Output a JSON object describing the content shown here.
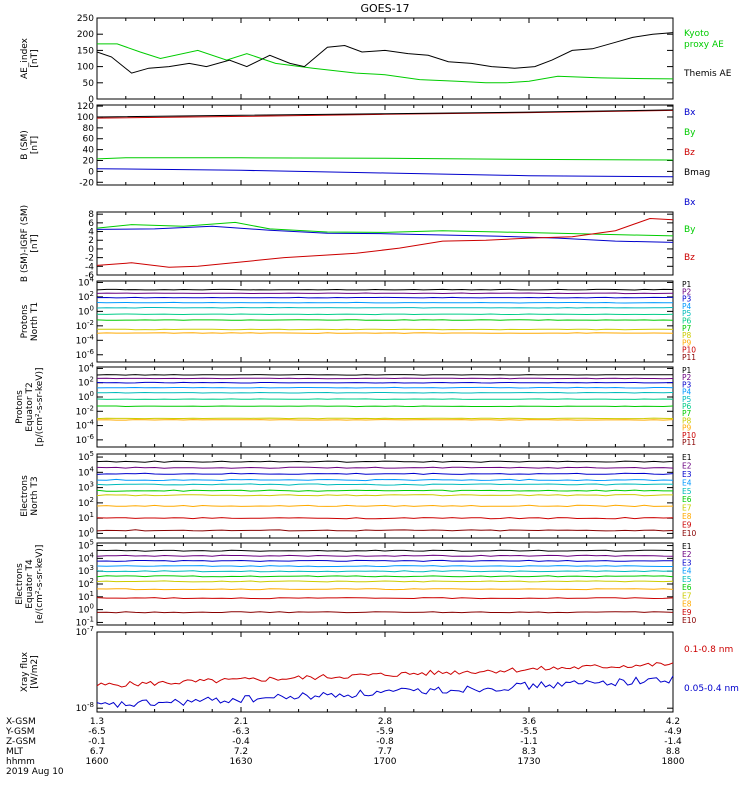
{
  "title": "GOES-17",
  "colors": {
    "black": "#000000",
    "green": "#00cc00",
    "red": "#cc0000",
    "blue": "#0000cc",
    "P": [
      "#000000",
      "#6a0080",
      "#0000cc",
      "#0099ff",
      "#00bbbb",
      "#00cc88",
      "#00cc00",
      "#cccc00",
      "#ffaa00",
      "#cc0000",
      "#880000"
    ],
    "E": [
      "#000000",
      "#6a0080",
      "#0000cc",
      "#0099ff",
      "#00bbbb",
      "#00cc00",
      "#cccc00",
      "#ffaa00",
      "#cc0000",
      "#880000"
    ]
  },
  "chart_data": [
    {
      "type": "line",
      "ylabel": "AE_index\n[nT]",
      "yticks": [
        "250",
        "200",
        "150",
        "100",
        "50",
        "0"
      ],
      "ylim": [
        0,
        250
      ],
      "x": [
        1600,
        1800
      ],
      "series": [
        {
          "name": "Kyoto\nproxy AE",
          "color": "green",
          "points": [
            [
              1600,
              170
            ],
            [
              1607,
              170
            ],
            [
              1615,
              145
            ],
            [
              1622,
              125
            ],
            [
              1635,
              150
            ],
            [
              1645,
              120
            ],
            [
              1652,
              140
            ],
            [
              1662,
              110
            ],
            [
              1675,
              95
            ],
            [
              1690,
              80
            ],
            [
              1700,
              75
            ],
            [
              1712,
              60
            ],
            [
              1725,
              55
            ],
            [
              1735,
              50
            ],
            [
              1742,
              50
            ],
            [
              1750,
              55
            ],
            [
              1760,
              70
            ],
            [
              1775,
              65
            ],
            [
              1790,
              63
            ],
            [
              1800,
              62
            ]
          ]
        },
        {
          "name": "Themis AE",
          "color": "black",
          "points": [
            [
              1600,
              145
            ],
            [
              1605,
              130
            ],
            [
              1612,
              80
            ],
            [
              1618,
              95
            ],
            [
              1625,
              100
            ],
            [
              1632,
              110
            ],
            [
              1638,
              100
            ],
            [
              1646,
              120
            ],
            [
              1652,
              100
            ],
            [
              1660,
              135
            ],
            [
              1667,
              110
            ],
            [
              1672,
              100
            ],
            [
              1680,
              160
            ],
            [
              1686,
              165
            ],
            [
              1692,
              145
            ],
            [
              1700,
              150
            ],
            [
              1708,
              140
            ],
            [
              1715,
              135
            ],
            [
              1722,
              115
            ],
            [
              1730,
              110
            ],
            [
              1737,
              100
            ],
            [
              1745,
              95
            ],
            [
              1752,
              100
            ],
            [
              1758,
              120
            ],
            [
              1765,
              150
            ],
            [
              1772,
              155
            ],
            [
              1780,
              175
            ],
            [
              1786,
              190
            ],
            [
              1793,
              200
            ],
            [
              1800,
              205
            ]
          ]
        }
      ]
    },
    {
      "type": "line",
      "ylabel": "B (SM)\n[nT]",
      "yticks": [
        "120",
        "100",
        "80",
        "60",
        "40",
        "20",
        "0",
        "-20"
      ],
      "ylim": [
        -25,
        122
      ],
      "x": [
        1600,
        1800
      ],
      "series": [
        {
          "name": "Bx",
          "color": "blue",
          "points": [
            [
              1600,
              5
            ],
            [
              1650,
              2
            ],
            [
              1700,
              -3
            ],
            [
              1750,
              -8
            ],
            [
              1800,
              -10
            ]
          ]
        },
        {
          "name": "By",
          "color": "green",
          "points": [
            [
              1600,
              23
            ],
            [
              1610,
              25
            ],
            [
              1650,
              25
            ],
            [
              1700,
              24
            ],
            [
              1750,
              22
            ],
            [
              1800,
              21
            ]
          ]
        },
        {
          "name": "Bz",
          "color": "red",
          "points": [
            [
              1600,
              98
            ],
            [
              1650,
              101
            ],
            [
              1700,
              105
            ],
            [
              1750,
              108
            ],
            [
              1800,
              112
            ]
          ]
        },
        {
          "name": "Bmag",
          "color": "black",
          "points": [
            [
              1600,
              100
            ],
            [
              1650,
              103
            ],
            [
              1700,
              106
            ],
            [
              1750,
              109
            ],
            [
              1800,
              113
            ]
          ]
        }
      ]
    },
    {
      "type": "line",
      "ylabel": "B (SM)-IGRF (SM)\n[nT]",
      "yticks": [
        "8",
        "6",
        "4",
        "2",
        "0",
        "-2",
        "-4",
        "-6"
      ],
      "ylim": [
        -6,
        8.5
      ],
      "x": [
        1600,
        1800
      ],
      "series": [
        {
          "name": "Bx",
          "color": "blue",
          "points": [
            [
              1600,
              4.5
            ],
            [
              1620,
              4.6
            ],
            [
              1640,
              5.2
            ],
            [
              1660,
              4.3
            ],
            [
              1680,
              3.6
            ],
            [
              1700,
              3.5
            ],
            [
              1720,
              3.2
            ],
            [
              1740,
              2.9
            ],
            [
              1760,
              2.5
            ],
            [
              1780,
              1.8
            ],
            [
              1800,
              1.5
            ]
          ]
        },
        {
          "name": "By",
          "color": "green",
          "points": [
            [
              1600,
              4.8
            ],
            [
              1612,
              5.6
            ],
            [
              1630,
              5.2
            ],
            [
              1648,
              6.1
            ],
            [
              1660,
              4.6
            ],
            [
              1680,
              3.9
            ],
            [
              1700,
              3.8
            ],
            [
              1720,
              4.2
            ],
            [
              1740,
              3.9
            ],
            [
              1760,
              3.6
            ],
            [
              1780,
              3.3
            ],
            [
              1800,
              3.0
            ]
          ]
        },
        {
          "name": "Bz",
          "color": "red",
          "points": [
            [
              1600,
              -3.8
            ],
            [
              1612,
              -3.2
            ],
            [
              1625,
              -4.2
            ],
            [
              1635,
              -4.0
            ],
            [
              1650,
              -3.0
            ],
            [
              1665,
              -2.0
            ],
            [
              1690,
              -1.0
            ],
            [
              1705,
              0.2
            ],
            [
              1720,
              1.8
            ],
            [
              1735,
              2.0
            ],
            [
              1750,
              2.5
            ],
            [
              1765,
              2.8
            ],
            [
              1780,
              4.2
            ],
            [
              1792,
              7.0
            ],
            [
              1800,
              6.7
            ]
          ]
        }
      ]
    },
    {
      "type": "line",
      "log": true,
      "ylabel": "Protons\nNorth T1",
      "yticks": [
        "10^4",
        "10^2",
        "10^0",
        "10^-2",
        "10^-4",
        "10^-6"
      ],
      "ylim_exp": [
        -7,
        4.2
      ],
      "x": [
        1600,
        1800
      ],
      "series": [
        {
          "name": "P1",
          "c": 0,
          "level": 3.0
        },
        {
          "name": "P2",
          "c": 1,
          "level": 2.5
        },
        {
          "name": "P3",
          "c": 2,
          "level": 1.9
        },
        {
          "name": "P4",
          "c": 3,
          "level": 1.2
        },
        {
          "name": "P5",
          "c": 4,
          "level": 0.5
        },
        {
          "name": "P6",
          "c": 5,
          "level": -0.4
        },
        {
          "name": "P7",
          "c": 6,
          "level": -1.2
        },
        {
          "name": "P8",
          "c": 7,
          "level": -2.5
        },
        {
          "name": "P9",
          "c": 8,
          "level": -3.0
        },
        {
          "name": "P10",
          "c": 9,
          "level": -99
        },
        {
          "name": "P11",
          "c": 10,
          "level": -99
        }
      ]
    },
    {
      "type": "line",
      "log": true,
      "ylabel": "Protons\nEquator T2\n[p/(cm²-s-sr-keV)]",
      "yticks": [
        "10^4",
        "10^2",
        "10^0",
        "10^-2",
        "10^-4",
        "10^-6"
      ],
      "ylim_exp": [
        -7,
        4.2
      ],
      "x": [
        1600,
        1800
      ],
      "series": [
        {
          "name": "P1",
          "c": 0,
          "level": 3.1
        },
        {
          "name": "P2",
          "c": 1,
          "level": 2.6
        },
        {
          "name": "P3",
          "c": 2,
          "level": 2.0
        },
        {
          "name": "P4",
          "c": 3,
          "level": 1.3
        },
        {
          "name": "P5",
          "c": 4,
          "level": 0.6
        },
        {
          "name": "P6",
          "c": 5,
          "level": -0.3
        },
        {
          "name": "P7",
          "c": 6,
          "level": -1.3
        },
        {
          "name": "P8",
          "c": 7,
          "level": -3.0
        },
        {
          "name": "P9",
          "c": 8,
          "level": -3.2
        },
        {
          "name": "P10",
          "c": 9,
          "level": -99
        },
        {
          "name": "P11",
          "c": 10,
          "level": -99
        }
      ]
    },
    {
      "type": "line",
      "log": true,
      "ylabel": "Electrons\nNorth T3",
      "yticks": [
        "10^5",
        "10^4",
        "10^3",
        "10^2",
        "10^1",
        "10^0"
      ],
      "ylim_exp": [
        -0.3,
        5.2
      ],
      "x": [
        1600,
        1800
      ],
      "series": [
        {
          "name": "E1",
          "c": 0,
          "level": 4.7
        },
        {
          "name": "E2",
          "c": 1,
          "level": 4.3
        },
        {
          "name": "E3",
          "c": 2,
          "level": 3.9
        },
        {
          "name": "E4",
          "c": 3,
          "level": 3.5
        },
        {
          "name": "E5",
          "c": 4,
          "level": 3.2
        },
        {
          "name": "E6",
          "c": 5,
          "level": 2.8
        },
        {
          "name": "E7",
          "c": 6,
          "level": 2.5
        },
        {
          "name": "E8",
          "c": 7,
          "level": 1.8
        },
        {
          "name": "E9",
          "c": 8,
          "level": 1.0
        },
        {
          "name": "E10",
          "c": 9,
          "level": 0.2
        }
      ]
    },
    {
      "type": "line",
      "log": true,
      "ylabel": "Electrons\nEquator T4\n[e/(cm²-s-sr-keV)]",
      "yticks": [
        "10^5",
        "10^4",
        "10^3",
        "10^2",
        "10^1",
        "10^0",
        "10^-1"
      ],
      "ylim_exp": [
        -1.2,
        5.2
      ],
      "x": [
        1600,
        1800
      ],
      "series": [
        {
          "name": "E1",
          "c": 0,
          "level": 4.6
        },
        {
          "name": "E2",
          "c": 1,
          "level": 4.2
        },
        {
          "name": "E3",
          "c": 2,
          "level": 3.8
        },
        {
          "name": "E4",
          "c": 3,
          "level": 3.4
        },
        {
          "name": "E5",
          "c": 4,
          "level": 3.0
        },
        {
          "name": "E6",
          "c": 5,
          "level": 2.6
        },
        {
          "name": "E7",
          "c": 6,
          "level": 2.2
        },
        {
          "name": "E8",
          "c": 7,
          "level": 1.6
        },
        {
          "name": "E9",
          "c": 8,
          "level": 0.9
        },
        {
          "name": "E10",
          "c": 9,
          "level": -0.2
        }
      ]
    },
    {
      "type": "line",
      "log": true,
      "ylabel": "Xray flux\n[W/m2]",
      "yticks": [
        "10^-7",
        "10^-8"
      ],
      "ylim_exp": [
        -8.05,
        -7.0
      ],
      "x": [
        1600,
        1800
      ],
      "series": [
        {
          "name": "0.1-0.8 nm",
          "color": "red",
          "start": -7.7,
          "end": -7.42,
          "noise": 0.035
        },
        {
          "name": "0.05-0.4 nm",
          "color": "blue",
          "start": -7.97,
          "end": -7.62,
          "noise": 0.05
        }
      ]
    }
  ],
  "xaxis": {
    "rows": [
      {
        "label": "X-GSM",
        "values": [
          "1.3",
          "2.1",
          "2.8",
          "3.6",
          "4.2"
        ]
      },
      {
        "label": "Y-GSM",
        "values": [
          "-6.5",
          "-6.3",
          "-5.9",
          "-5.5",
          "-4.9"
        ]
      },
      {
        "label": "Z-GSM",
        "values": [
          "-0.1",
          "-0.4",
          "-0.8",
          "-1.1",
          "-1.4"
        ]
      },
      {
        "label": "MLT",
        "values": [
          "6.7",
          "7.2",
          "7.7",
          "8.3",
          "8.8"
        ]
      },
      {
        "label": "hhmm",
        "values": [
          "1600",
          "1630",
          "1700",
          "1730",
          "1800"
        ]
      }
    ],
    "date": "2019 Aug 10"
  }
}
